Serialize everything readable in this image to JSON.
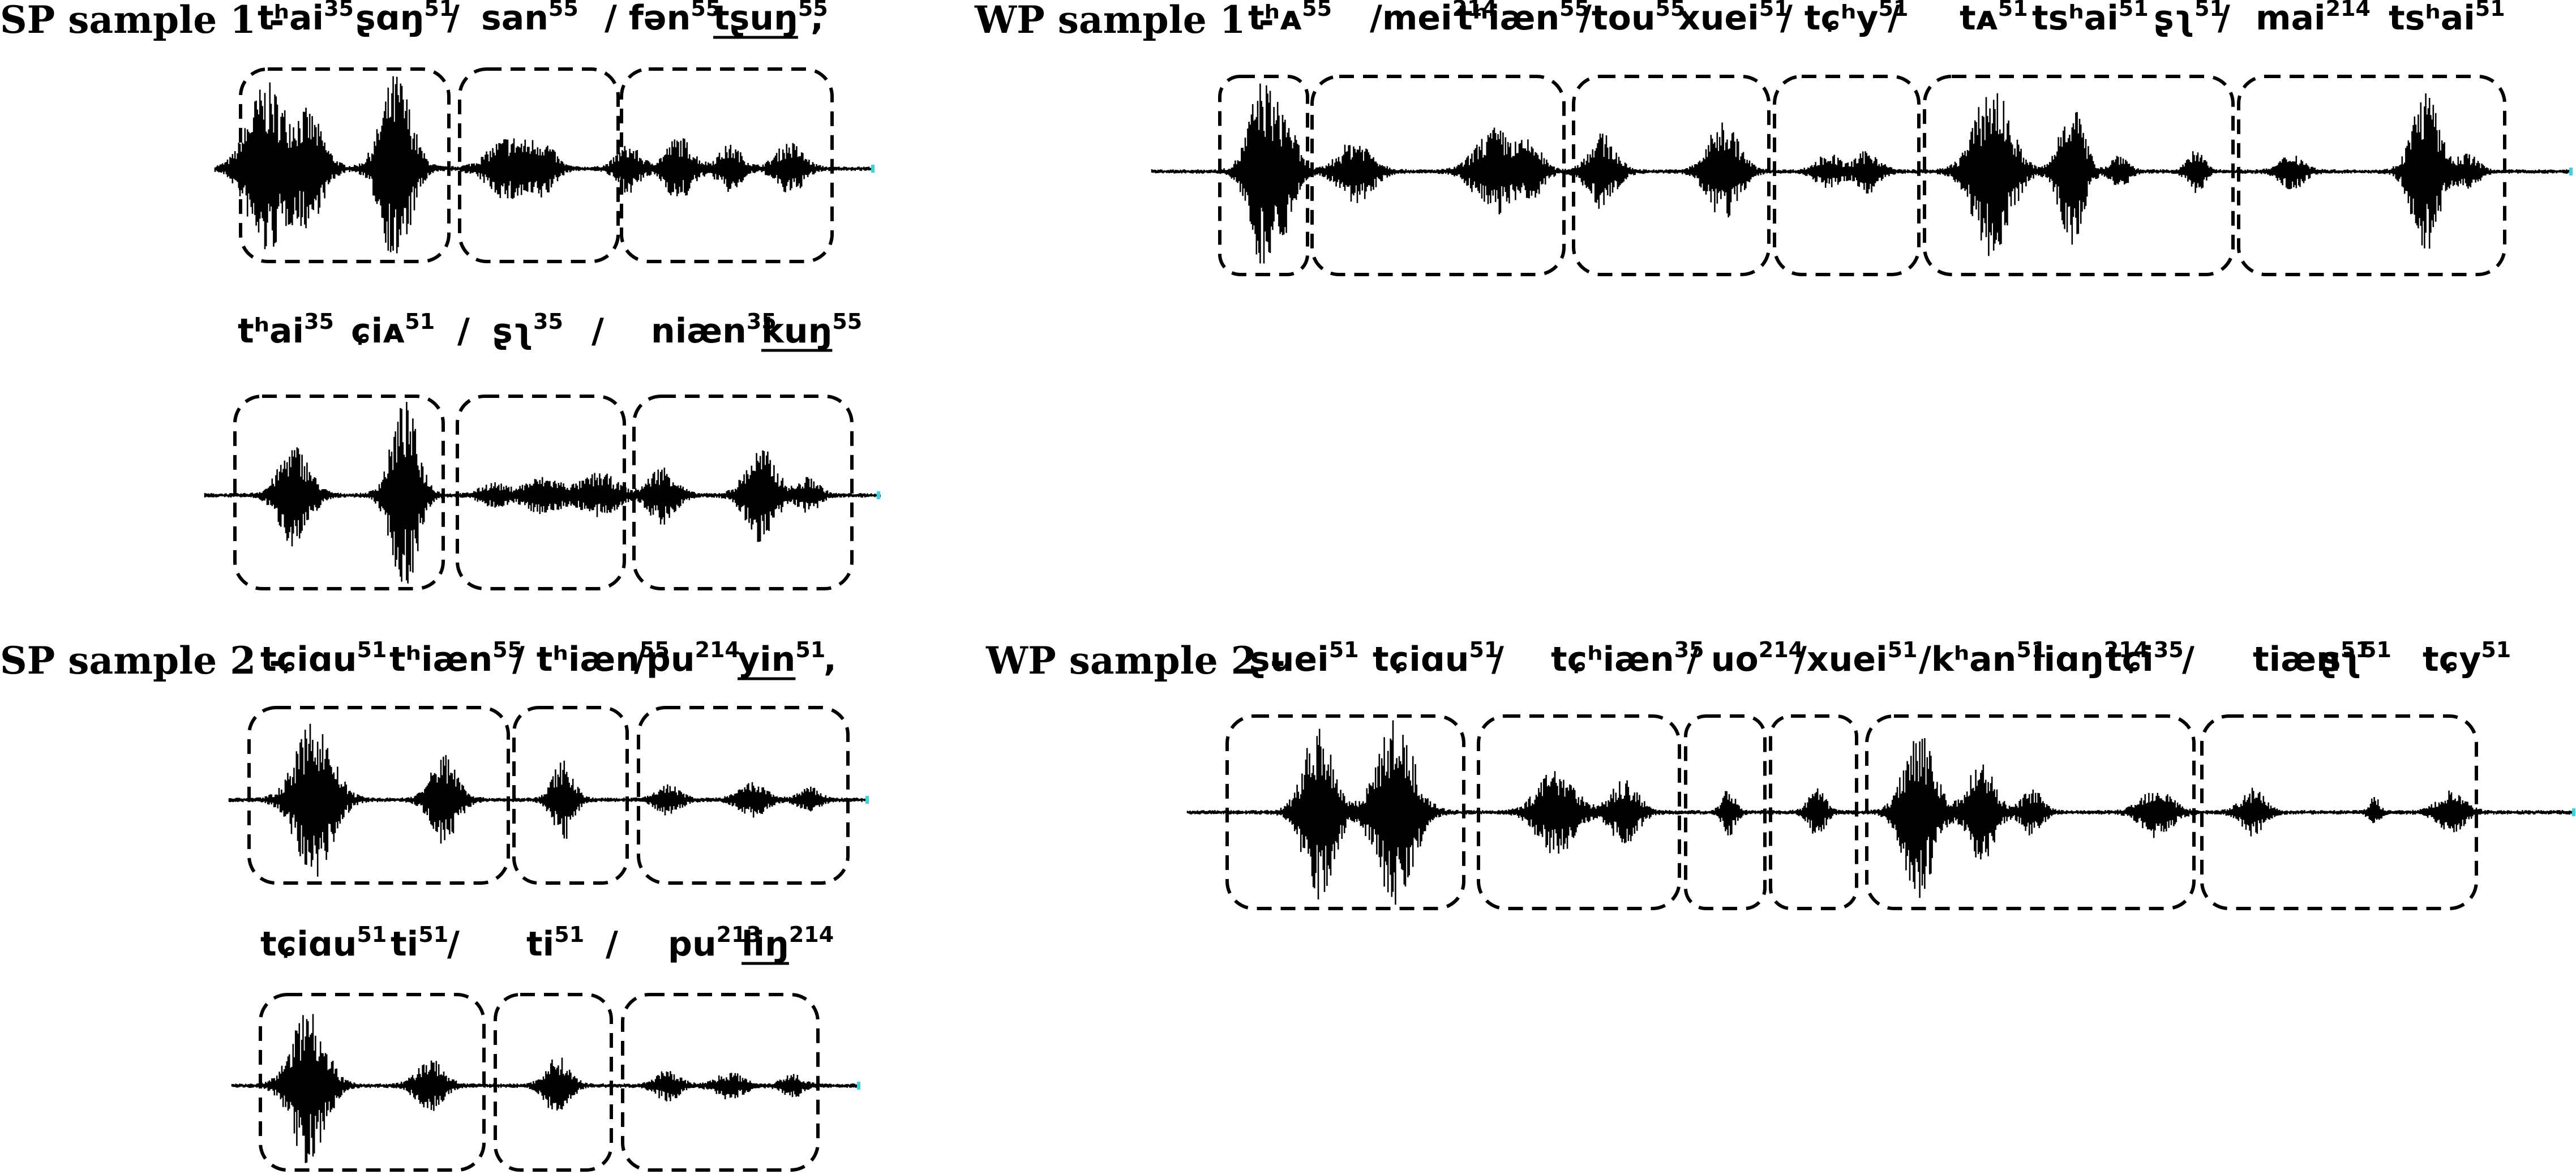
{
  "panels": [
    {
      "title": "SP sample 1 -",
      "rows": [
        {
          "syllables": [
            {
              "base": "tʰai",
              "tone": "35"
            },
            {
              "base": "ʂɑŋ",
              "tone": "51"
            },
            {
              "base": "/",
              "tone": ""
            },
            {
              "base": "san",
              "tone": "55"
            },
            {
              "base": "/ fən",
              "tone": "55"
            },
            {
              "base": "tʂuŋ",
              "tone": "55",
              "underline": true
            },
            {
              "base": ",",
              "tone": ""
            }
          ]
        },
        {
          "syllables": [
            {
              "base": "tʰai",
              "tone": "35"
            },
            {
              "base": "ɕiᴀ",
              "tone": "51"
            },
            {
              "base": "/",
              "tone": ""
            },
            {
              "base": "ʂʅ",
              "tone": "35"
            },
            {
              "base": "/",
              "tone": ""
            },
            {
              "base": "niæn",
              "tone": "35"
            },
            {
              "base": "kuŋ",
              "tone": "55",
              "underline": true
            }
          ]
        }
      ]
    },
    {
      "title": "WP sample 1 -",
      "rows": [
        {
          "syllables": [
            {
              "base": "tʰᴀ",
              "tone": "55"
            },
            {
              "base": "/mei",
              "tone": "214"
            },
            {
              "base": "tʰiæn",
              "tone": "55"
            },
            {
              "base": "/tou",
              "tone": "55"
            },
            {
              "base": "xuei",
              "tone": "51"
            },
            {
              "base": "/ tɕʰy",
              "tone": "51"
            },
            {
              "base": "/",
              "tone": ""
            },
            {
              "base": "tᴀ",
              "tone": "51"
            },
            {
              "base": "tsʰai",
              "tone": "51"
            },
            {
              "base": "ʂʅ",
              "tone": "51"
            },
            {
              "base": "/",
              "tone": ""
            },
            {
              "base": "mai",
              "tone": "214"
            },
            {
              "base": "tsʰai",
              "tone": "51"
            }
          ]
        }
      ]
    },
    {
      "title": "SP sample 2 -",
      "rows": [
        {
          "syllables": [
            {
              "base": "tɕiɑu",
              "tone": "51"
            },
            {
              "base": "tʰiæn",
              "tone": "55"
            },
            {
              "base": "/ tʰiæn",
              "tone": "55"
            },
            {
              "base": "/pu",
              "tone": "214"
            },
            {
              "base": "yin",
              "tone": "51",
              "underline": true
            },
            {
              "base": ",",
              "tone": ""
            }
          ]
        },
        {
          "syllables": [
            {
              "base": "tɕiɑu",
              "tone": "51"
            },
            {
              "base": "ti",
              "tone": "51"
            },
            {
              "base": "/",
              "tone": ""
            },
            {
              "base": "ti",
              "tone": "51"
            },
            {
              "base": "/",
              "tone": ""
            },
            {
              "base": "pu",
              "tone": "213"
            },
            {
              "base": "liŋ",
              "tone": "214",
              "underline": true
            }
          ]
        }
      ]
    },
    {
      "title": "WP sample 2 -",
      "rows": [
        {
          "syllables": [
            {
              "base": "ʂuei",
              "tone": "51"
            },
            {
              "base": "tɕiɑu",
              "tone": "51"
            },
            {
              "base": "/",
              "tone": ""
            },
            {
              "base": "tɕʰiæn",
              "tone": "35"
            },
            {
              "base": "/ uo",
              "tone": "214"
            },
            {
              "base": "/xuei",
              "tone": "51"
            },
            {
              "base": "/kʰan",
              "tone": "51"
            },
            {
              "base": "liɑŋ",
              "tone": "214"
            },
            {
              "base": "tɕi",
              "tone": "35"
            },
            {
              "base": "/",
              "tone": ""
            },
            {
              "base": "tiæn",
              "tone": "51"
            },
            {
              "base": "ʂʅ",
              "tone": "51"
            },
            {
              "base": "tɕy",
              "tone": "51"
            }
          ]
        }
      ]
    }
  ],
  "colors": {
    "waveform": "#000000",
    "box_stroke": "#000000",
    "end_tick": "#3ad4e0"
  },
  "icons": {
    "segment_box": "dashed-rounded-rectangle",
    "waveform": "audio-waveform"
  }
}
